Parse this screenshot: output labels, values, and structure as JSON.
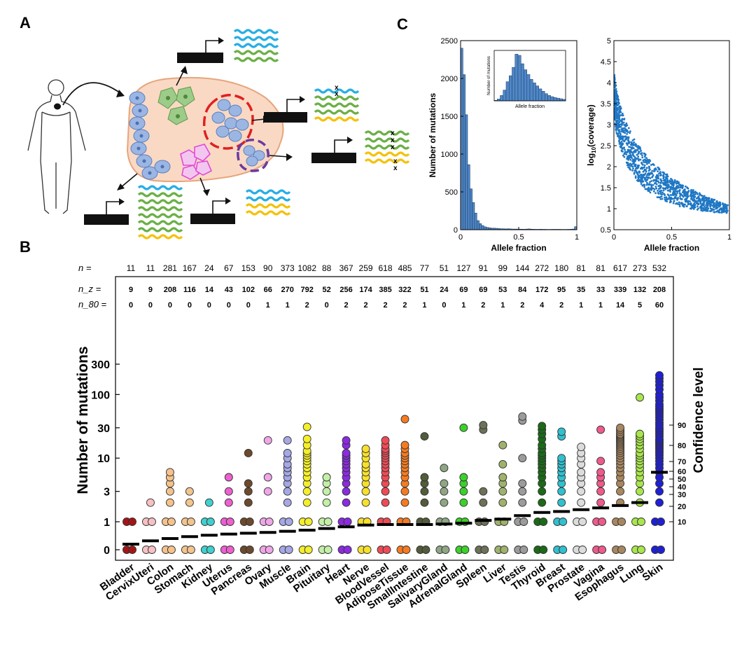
{
  "panels": {
    "a_label": "A",
    "b_label": "B",
    "c_label": "C"
  },
  "panel_a": {
    "description_colors": {
      "tissue_fill": "#f9d9c4",
      "tissue_stroke": "#e7a57c",
      "blue_cell": "#9bb6e3",
      "green_cell": "#9ccb8a",
      "magenta_cell": "#e04bd6",
      "red_dash": "#e02020",
      "purple_dash": "#6a3aa0",
      "wave_blue": "#27aee5",
      "wave_green": "#6ab045",
      "wave_yellow": "#f4c20d"
    },
    "mutation_mark": "x"
  },
  "chart_data": [
    {
      "type": "scatter",
      "panel": "B",
      "ylabel": "Number of mutations",
      "right_label": "Confidence level",
      "y_ticks": [
        "0",
        "1",
        "3",
        "10",
        "30",
        "100",
        "300"
      ],
      "conf_ticks": [
        "10",
        "20",
        "30",
        "40",
        "50",
        "60",
        "70",
        "80",
        "90"
      ],
      "row_labels": {
        "n": "n =",
        "nz": "n_z =",
        "n80": "n_80 ="
      },
      "tissues": [
        {
          "name": "Bladder",
          "color": "#a31515",
          "n": "11",
          "nz": "9",
          "n80": "0",
          "values": [
            0,
            1
          ],
          "threshold": 0.2
        },
        {
          "name": "CervixUteri",
          "color": "#f7c0c4",
          "n": "11",
          "nz": "9",
          "n80": "0",
          "values": [
            0,
            1,
            2
          ],
          "threshold": 0.32
        },
        {
          "name": "Colon",
          "color": "#f5c28b",
          "n": "281",
          "nz": "208",
          "n80": "0",
          "values": [
            0,
            1,
            2,
            3,
            4,
            5,
            6
          ],
          "threshold": 0.4
        },
        {
          "name": "Stomach",
          "color": "#f2c48e",
          "n": "167",
          "nz": "116",
          "n80": "0",
          "values": [
            0,
            1,
            2,
            3
          ],
          "threshold": 0.47
        },
        {
          "name": "Kidney",
          "color": "#3fd0cf",
          "n": "24",
          "nz": "14",
          "n80": "0",
          "values": [
            0,
            1,
            2
          ],
          "threshold": 0.52
        },
        {
          "name": "Uterus",
          "color": "#ee5fd0",
          "n": "67",
          "nz": "43",
          "n80": "0",
          "values": [
            0,
            1,
            2,
            3,
            5
          ],
          "threshold": 0.56
        },
        {
          "name": "Pancreas",
          "color": "#6d4a2c",
          "n": "153",
          "nz": "102",
          "n80": "0",
          "values": [
            0,
            1,
            2,
            3,
            4,
            12
          ],
          "threshold": 0.59
        },
        {
          "name": "Ovary",
          "color": "#f0a6e8",
          "n": "90",
          "nz": "66",
          "n80": "1",
          "values": [
            0,
            1,
            3,
            5,
            19
          ],
          "threshold": 0.62
        },
        {
          "name": "Muscle",
          "color": "#a6a7e5",
          "n": "373",
          "nz": "270",
          "n80": "1",
          "values": [
            0,
            1,
            2,
            3,
            4,
            5,
            6,
            7,
            8,
            10,
            12,
            19
          ],
          "threshold": 0.66
        },
        {
          "name": "Brain",
          "color": "#f4ef2a",
          "n": "1082",
          "nz": "792",
          "n80": "2",
          "values": [
            0,
            1,
            2,
            3,
            4,
            5,
            6,
            7,
            8,
            9,
            10,
            11,
            12,
            13,
            16,
            20,
            31
          ],
          "threshold": 0.7
        },
        {
          "name": "Pituitary",
          "color": "#c3f0a6",
          "n": "88",
          "nz": "52",
          "n80": "0",
          "values": [
            0,
            1,
            2,
            3,
            4,
            5
          ],
          "threshold": 0.76
        },
        {
          "name": "Heart",
          "color": "#8a2be2",
          "n": "367",
          "nz": "256",
          "n80": "2",
          "values": [
            0,
            1,
            2,
            3,
            4,
            5,
            6,
            7,
            8,
            9,
            10,
            11,
            12,
            16,
            19
          ],
          "threshold": 0.82
        },
        {
          "name": "Nerve",
          "color": "#f6e02c",
          "n": "259",
          "nz": "174",
          "n80": "2",
          "values": [
            0,
            1,
            2,
            3,
            4,
            5,
            6,
            7,
            8,
            10,
            12,
            14
          ],
          "threshold": 0.88
        },
        {
          "name": "BloodVessel",
          "color": "#ee4b57",
          "n": "618",
          "nz": "385",
          "n80": "2",
          "values": [
            0,
            1,
            2,
            3,
            4,
            5,
            6,
            7,
            8,
            9,
            10,
            11,
            12,
            13,
            14,
            16,
            19
          ],
          "threshold": 0.9
        },
        {
          "name": "AdiposeTissue",
          "color": "#f57b21",
          "n": "485",
          "nz": "322",
          "n80": "2",
          "values": [
            0,
            1,
            2,
            3,
            4,
            5,
            6,
            7,
            8,
            9,
            10,
            11,
            12,
            14,
            16,
            41
          ],
          "threshold": 0.9
        },
        {
          "name": "SmallIntestine",
          "color": "#525c3a",
          "n": "77",
          "nz": "51",
          "n80": "1",
          "values": [
            0,
            1,
            2,
            3,
            4,
            5,
            22
          ],
          "threshold": 0.9
        },
        {
          "name": "SalivaryGland",
          "color": "#8ea684",
          "n": "51",
          "nz": "24",
          "n80": "0",
          "values": [
            0,
            1,
            2,
            3,
            4,
            7
          ],
          "threshold": 0.92
        },
        {
          "name": "AdrenalGland",
          "color": "#3bd12a",
          "n": "127",
          "nz": "69",
          "n80": "1",
          "values": [
            0,
            1,
            2,
            3,
            4,
            5,
            30
          ],
          "threshold": 0.95
        },
        {
          "name": "Spleen",
          "color": "#6b7258",
          "n": "91",
          "nz": "69",
          "n80": "2",
          "values": [
            0,
            1,
            2,
            3,
            28,
            33
          ],
          "threshold": 1.05
        },
        {
          "name": "Liver",
          "color": "#9fb26b",
          "n": "99",
          "nz": "53",
          "n80": "1",
          "values": [
            0,
            1,
            2,
            3,
            4,
            5,
            8,
            16
          ],
          "threshold": 1.1
        },
        {
          "name": "Testis",
          "color": "#9b9b9b",
          "n": "144",
          "nz": "84",
          "n80": "2",
          "values": [
            0,
            1,
            2,
            3,
            4,
            10,
            39,
            45
          ],
          "threshold": 1.25
        },
        {
          "name": "Thyroid",
          "color": "#1b6a18",
          "n": "272",
          "nz": "172",
          "n80": "4",
          "values": [
            0,
            1,
            2,
            3,
            4,
            5,
            6,
            7,
            8,
            9,
            10,
            11,
            12,
            14,
            16,
            20,
            24,
            28,
            32
          ],
          "threshold": 1.4
        },
        {
          "name": "Breast",
          "color": "#30c0cf",
          "n": "180",
          "nz": "95",
          "n80": "2",
          "values": [
            0,
            1,
            2,
            3,
            4,
            5,
            6,
            7,
            8,
            9,
            10,
            22,
            26
          ],
          "threshold": 1.45
        },
        {
          "name": "Prostate",
          "color": "#dcdcdc",
          "n": "81",
          "nz": "35",
          "n80": "1",
          "values": [
            0,
            1,
            2,
            3,
            4,
            5,
            6,
            8,
            10,
            12,
            15
          ],
          "threshold": 1.55
        },
        {
          "name": "Vagina",
          "color": "#ee5a8a",
          "n": "81",
          "nz": "33",
          "n80": "1",
          "values": [
            0,
            1,
            2,
            3,
            4,
            5,
            6,
            9,
            28
          ],
          "threshold": 1.65
        },
        {
          "name": "Esophagus",
          "color": "#a8875f",
          "n": "617",
          "nz": "339",
          "n80": "14",
          "values": [
            0,
            1,
            2,
            3,
            4,
            5,
            6,
            7,
            8,
            9,
            10,
            11,
            12,
            13,
            14,
            15,
            16,
            17,
            18,
            19,
            20,
            21,
            22,
            23,
            24,
            26,
            28,
            30
          ],
          "threshold": 1.8
        },
        {
          "name": "Lung",
          "color": "#a8e64a",
          "n": "273",
          "nz": "132",
          "n80": "5",
          "values": [
            0,
            1,
            2,
            3,
            4,
            5,
            6,
            7,
            8,
            9,
            10,
            11,
            12,
            14,
            16,
            18,
            20,
            22,
            24,
            90
          ],
          "threshold": 2.0
        },
        {
          "name": "Skin",
          "color": "#1f1fd6",
          "n": "532",
          "nz": "208",
          "n80": "60",
          "values": [
            0,
            1,
            2,
            3,
            4,
            5,
            6,
            7,
            8,
            9,
            10,
            11,
            12,
            13,
            14,
            15,
            16,
            17,
            18,
            19,
            20,
            22,
            24,
            26,
            28,
            30,
            33,
            36,
            40,
            44,
            48,
            52,
            56,
            60,
            65,
            70,
            80,
            90,
            100,
            120,
            140,
            160,
            180,
            200
          ],
          "threshold": 6.0
        }
      ]
    },
    {
      "type": "bar",
      "panel": "C-left",
      "xlabel": "Allele fraction",
      "ylabel": "Number of mutations",
      "xlim": [
        0,
        1
      ],
      "ylim": [
        0,
        2500
      ],
      "x_ticks": [
        "0",
        "0.5",
        "1"
      ],
      "y_ticks": [
        "0",
        "500",
        "1000",
        "1500",
        "2000",
        "2500"
      ],
      "bin_width": 0.02,
      "values": [
        2400,
        2050,
        1520,
        860,
        540,
        360,
        220,
        120,
        80,
        55,
        38,
        30,
        25,
        20,
        20,
        18,
        15,
        12,
        12,
        10,
        12,
        10,
        8,
        8,
        8,
        7,
        7,
        6,
        8,
        10,
        7,
        6,
        5,
        5,
        6,
        5,
        5,
        4,
        4,
        5,
        5,
        5,
        5,
        4,
        4,
        4,
        5,
        6,
        8,
        40
      ],
      "inset": {
        "xlabel": "Allele fraction",
        "ylabel": "Number of mutations",
        "values": [
          8,
          30,
          90,
          180,
          320,
          420,
          560,
          780,
          760,
          620,
          520,
          440,
          360,
          300,
          250,
          200,
          160,
          120,
          90,
          70,
          55,
          45,
          35,
          25
        ]
      }
    },
    {
      "type": "scatter",
      "panel": "C-right",
      "xlabel": "Allele fraction",
      "ylabel": "log",
      "ylabel_sub": "10",
      "ylabel_rest": "(coverage)",
      "xlim": [
        0,
        1
      ],
      "ylim": [
        0.5,
        5
      ],
      "x_ticks": [
        "0",
        "0.5",
        "1"
      ],
      "y_ticks": [
        "0.5",
        "1",
        "1.5",
        "2",
        "2.5",
        "3",
        "3.5",
        "4",
        "4.5",
        "5"
      ],
      "point_color": "#1f77c4",
      "trend": "Coverage decreases steeply as allele fraction increases; dense cloud near 0 with values 2-3.5, tapering to about 0.7-1.2 near allele fraction 1"
    }
  ]
}
